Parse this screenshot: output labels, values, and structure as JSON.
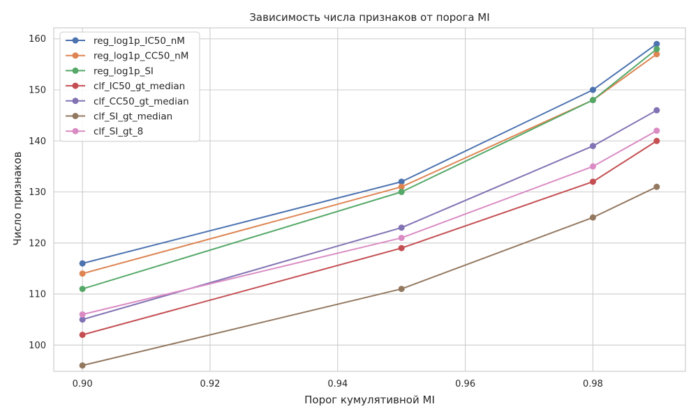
{
  "chart_data": {
    "type": "line",
    "title": "Зависимость числа признаков от порога MI",
    "xlabel": "Порог кумулятивной MI",
    "ylabel": "Число признаков",
    "x": [
      0.9,
      0.95,
      0.98,
      0.99
    ],
    "xlim": [
      0.8955,
      0.9945
    ],
    "ylim": [
      94.85,
      162.15
    ],
    "x_ticks": [
      0.9,
      0.92,
      0.94,
      0.96,
      0.98
    ],
    "x_tick_labels": [
      "0.90",
      "0.92",
      "0.94",
      "0.96",
      "0.98"
    ],
    "y_ticks": [
      100,
      110,
      120,
      130,
      140,
      150,
      160
    ],
    "y_tick_labels": [
      "100",
      "110",
      "120",
      "130",
      "140",
      "150",
      "160"
    ],
    "grid": true,
    "legend_position": "top-left",
    "series": [
      {
        "name": "reg_log1p_IC50_nM",
        "color": "#4c72b0",
        "values": [
          116,
          132,
          150,
          159
        ]
      },
      {
        "name": "reg_log1p_CC50_nM",
        "color": "#dd8452",
        "values": [
          114,
          131,
          148,
          157
        ]
      },
      {
        "name": "reg_log1p_SI",
        "color": "#55a868",
        "values": [
          111,
          130,
          148,
          158
        ]
      },
      {
        "name": "clf_IC50_gt_median",
        "color": "#c44e52",
        "values": [
          102,
          119,
          132,
          140
        ]
      },
      {
        "name": "clf_CC50_gt_median",
        "color": "#8172b3",
        "values": [
          105,
          123,
          139,
          146
        ]
      },
      {
        "name": "clf_SI_gt_median",
        "color": "#937860",
        "values": [
          96,
          111,
          125,
          131
        ]
      },
      {
        "name": "clf_SI_gt_8",
        "color": "#da8bc3",
        "values": [
          106,
          121,
          135,
          142
        ]
      }
    ]
  }
}
